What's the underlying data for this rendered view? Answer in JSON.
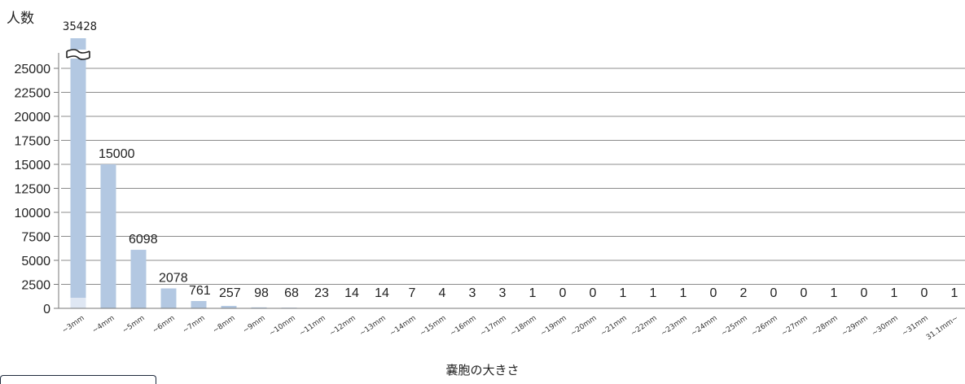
{
  "chart_data": {
    "type": "bar",
    "ylabel": "人数",
    "xlabel": "嚢胞の大きさ",
    "ylim": [
      0,
      27500
    ],
    "y_ticks": [
      0,
      2500,
      5000,
      7500,
      10000,
      12500,
      15000,
      17500,
      20000,
      22500,
      25000
    ],
    "y_axis_break": true,
    "grid": true,
    "bar_color": "#b3c8e2",
    "categories": [
      "~3mm",
      "~4mm",
      "~5mm",
      "~6mm",
      "~7mm",
      "~8mm",
      "~9mm",
      "~10mm",
      "~11mm",
      "~12mm",
      "~13mm",
      "~14mm",
      "~15mm",
      "~16mm",
      "~17mm",
      "~18mm",
      "~19mm",
      "~20mm",
      "~21mm",
      "~22mm",
      "~23mm",
      "~24mm",
      "~25mm",
      "~26mm",
      "~27mm",
      "~28mm",
      "~29mm",
      "~30mm",
      "~31mm",
      "31.1mm~"
    ],
    "values": [
      35428,
      15000,
      6098,
      2078,
      761,
      257,
      98,
      68,
      23,
      14,
      14,
      7,
      4,
      3,
      3,
      1,
      0,
      0,
      1,
      1,
      1,
      0,
      2,
      0,
      0,
      1,
      0,
      1,
      0,
      1
    ]
  }
}
